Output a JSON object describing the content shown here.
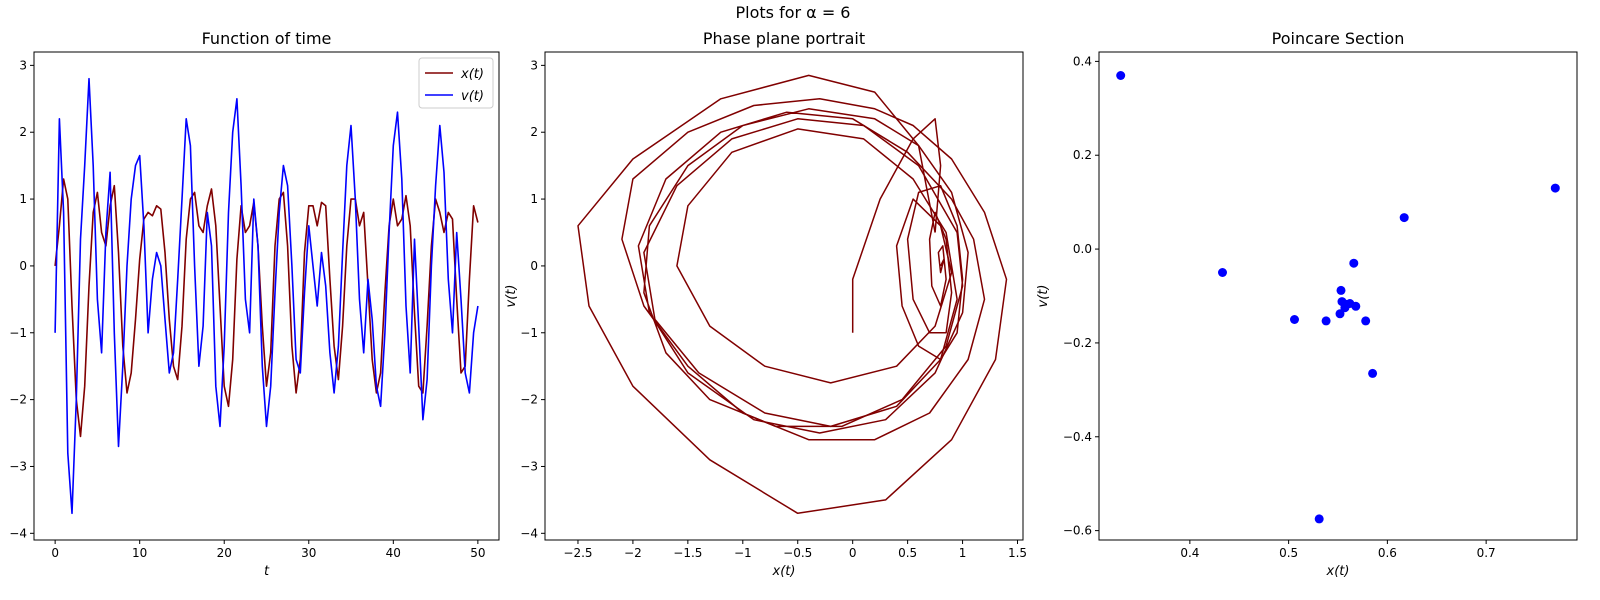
{
  "figure": {
    "suptitle": "Plots for α = 6"
  },
  "colors": {
    "x_series": "#800000",
    "v_series": "#0000ff",
    "poincare_points": "#0000ff",
    "axes": "#000000",
    "background": "#ffffff"
  },
  "chart_data": [
    {
      "type": "line",
      "title": "Function of time",
      "xlabel": "t",
      "ylabel": "",
      "xlim": [
        -2.5,
        52.5
      ],
      "ylim": [
        -4.1,
        3.2
      ],
      "xticks": [
        0,
        10,
        20,
        30,
        40,
        50
      ],
      "yticks": [
        -4,
        -3,
        -2,
        -1,
        0,
        1,
        2,
        3
      ],
      "grid": false,
      "legend": "top-right",
      "series": [
        {
          "name": "x(t)",
          "color": "#800000",
          "x": [
            0,
            0.5,
            1.0,
            1.5,
            2.0,
            2.5,
            3.0,
            3.5,
            4.0,
            4.5,
            5.0,
            5.5,
            6.0,
            6.5,
            7.0,
            7.5,
            8.0,
            8.5,
            9.0,
            9.5,
            10.0,
            10.5,
            11.0,
            11.5,
            12.0,
            12.5,
            13.0,
            13.5,
            14.0,
            14.5,
            15.0,
            15.5,
            16.0,
            16.5,
            17.0,
            17.5,
            18.0,
            18.5,
            19.0,
            19.5,
            20.0,
            20.5,
            21.0,
            21.5,
            22.0,
            22.5,
            23.0,
            23.5,
            24.0,
            24.5,
            25.0,
            25.5,
            26.0,
            26.5,
            27.0,
            27.5,
            28.0,
            28.5,
            29.0,
            29.5,
            30.0,
            30.5,
            31.0,
            31.5,
            32.0,
            32.5,
            33.0,
            33.5,
            34.0,
            34.5,
            35.0,
            35.5,
            36.0,
            36.5,
            37.0,
            37.5,
            38.0,
            38.5,
            39.0,
            39.5,
            40.0,
            40.5,
            41.0,
            41.5,
            42.0,
            42.5,
            43.0,
            43.5,
            44.0,
            44.5,
            45.0,
            45.5,
            46.0,
            46.5,
            47.0,
            47.5,
            48.0,
            48.5,
            49.0,
            49.5,
            50.0
          ],
          "values": [
            0,
            0.6,
            1.3,
            1.0,
            -0.6,
            -2.0,
            -2.55,
            -1.8,
            -0.3,
            0.8,
            1.1,
            0.5,
            0.3,
            0.9,
            1.2,
            0.2,
            -1.2,
            -1.9,
            -1.6,
            -0.8,
            0.1,
            0.7,
            0.8,
            0.75,
            0.9,
            0.85,
            0.2,
            -0.8,
            -1.5,
            -1.7,
            -0.9,
            0.4,
            1.0,
            1.1,
            0.6,
            0.5,
            0.9,
            1.15,
            0.6,
            -0.6,
            -1.8,
            -2.1,
            -1.4,
            0.1,
            0.9,
            0.5,
            0.6,
            0.95,
            0.3,
            -0.9,
            -1.8,
            -1.3,
            0.3,
            1.0,
            1.1,
            0.3,
            -1.2,
            -1.9,
            -1.4,
            0.2,
            0.9,
            0.9,
            0.6,
            0.95,
            0.9,
            -0.2,
            -1.2,
            -1.7,
            -0.9,
            0.3,
            1.0,
            1.0,
            0.6,
            0.8,
            -0.3,
            -1.4,
            -1.9,
            -1.6,
            -0.4,
            0.6,
            1.0,
            0.6,
            0.7,
            1.05,
            0.6,
            -0.7,
            -1.8,
            -1.9,
            -0.9,
            0.3,
            1.0,
            0.8,
            0.5,
            0.8,
            0.7,
            -0.5,
            -1.6,
            -1.5,
            -0.2,
            0.9,
            0.65
          ]
        },
        {
          "name": "v(t)",
          "color": "#0000ff",
          "x": [
            0,
            0.5,
            1.0,
            1.5,
            2.0,
            2.5,
            3.0,
            3.5,
            4.0,
            4.5,
            5.0,
            5.5,
            6.0,
            6.5,
            7.0,
            7.5,
            8.0,
            8.5,
            9.0,
            9.5,
            10.0,
            10.5,
            11.0,
            11.5,
            12.0,
            12.5,
            13.0,
            13.5,
            14.0,
            14.5,
            15.0,
            15.5,
            16.0,
            16.5,
            17.0,
            17.5,
            18.0,
            18.5,
            19.0,
            19.5,
            20.0,
            20.5,
            21.0,
            21.5,
            22.0,
            22.5,
            23.0,
            23.5,
            24.0,
            24.5,
            25.0,
            25.5,
            26.0,
            26.5,
            27.0,
            27.5,
            28.0,
            28.5,
            29.0,
            29.5,
            30.0,
            30.5,
            31.0,
            31.5,
            32.0,
            32.5,
            33.0,
            33.5,
            34.0,
            34.5,
            35.0,
            35.5,
            36.0,
            36.5,
            37.0,
            37.5,
            38.0,
            38.5,
            39.0,
            39.5,
            40.0,
            40.5,
            41.0,
            41.5,
            42.0,
            42.5,
            43.0,
            43.5,
            44.0,
            44.5,
            45.0,
            45.5,
            46.0,
            46.5,
            47.0,
            47.5,
            48.0,
            48.5,
            49.0,
            49.5,
            50.0
          ],
          "values": [
            -1.0,
            2.2,
            0.8,
            -2.8,
            -3.7,
            -2.0,
            0.4,
            1.5,
            2.8,
            1.5,
            -0.5,
            -1.3,
            0.5,
            1.4,
            -1.0,
            -2.7,
            -1.5,
            0.0,
            1.0,
            1.5,
            1.65,
            0.6,
            -1.0,
            -0.2,
            0.2,
            0.0,
            -0.8,
            -1.6,
            -1.3,
            -0.2,
            1.0,
            2.2,
            1.8,
            0.0,
            -1.5,
            -0.9,
            0.8,
            0.3,
            -1.8,
            -2.4,
            -1.2,
            0.8,
            2.0,
            2.5,
            1.2,
            -0.5,
            -1.0,
            1.0,
            0.3,
            -1.5,
            -2.4,
            -1.8,
            -0.4,
            0.8,
            1.5,
            1.2,
            0.0,
            -1.4,
            -1.6,
            -0.4,
            0.6,
            0.0,
            -0.6,
            0.2,
            -0.3,
            -1.3,
            -1.9,
            -1.2,
            0.2,
            1.5,
            2.1,
            1.0,
            -0.5,
            -1.3,
            -0.2,
            -0.8,
            -1.8,
            -2.1,
            -1.0,
            0.5,
            1.8,
            2.3,
            1.3,
            -0.6,
            -1.6,
            0.4,
            -0.9,
            -2.3,
            -1.7,
            0.0,
            1.2,
            2.1,
            1.4,
            -0.2,
            -1.0,
            0.5,
            -0.5,
            -1.6,
            -1.9,
            -1.0,
            -0.6
          ]
        }
      ]
    },
    {
      "type": "line",
      "title": "Phase plane portrait",
      "xlabel": "x(t)",
      "ylabel": "v(t)",
      "xlim": [
        -2.8,
        1.55
      ],
      "ylim": [
        -4.1,
        3.2
      ],
      "xticks": [
        -2.5,
        -2.0,
        -1.5,
        -1.0,
        -0.5,
        0.0,
        0.5,
        1.0,
        1.5
      ],
      "yticks": [
        -4,
        -3,
        -2,
        -1,
        0,
        1,
        2,
        3
      ],
      "grid": false,
      "color": "#800000",
      "curves": [
        {
          "x": [
            0.0,
            0.0,
            0.25,
            0.55,
            0.75,
            0.8,
            0.75
          ],
          "y": [
            -1.0,
            -0.2,
            1.0,
            1.9,
            2.2,
            1.5,
            0.5
          ]
        },
        {
          "x": [
            0.75,
            0.6,
            0.2,
            -0.4,
            -1.2,
            -2.0,
            -2.5,
            -2.4,
            -2.0,
            -1.3,
            -0.5,
            0.3,
            0.9,
            1.3,
            1.4,
            1.2,
            0.9,
            0.55,
            0.2,
            -0.3,
            -0.9,
            -1.5,
            -2.0,
            -2.1,
            -1.9,
            -1.5,
            -1.0,
            -0.4,
            0.2,
            0.7,
            1.05,
            1.2,
            1.1,
            0.9
          ],
          "y": [
            0.5,
            1.8,
            2.6,
            2.85,
            2.5,
            1.6,
            0.6,
            -0.6,
            -1.8,
            -2.9,
            -3.7,
            -3.5,
            -2.6,
            -1.4,
            -0.2,
            0.8,
            1.6,
            2.1,
            2.35,
            2.5,
            2.4,
            2.0,
            1.3,
            0.4,
            -0.6,
            -1.5,
            -2.2,
            -2.6,
            -2.6,
            -2.2,
            -1.4,
            -0.5,
            0.4,
            1.0
          ]
        },
        {
          "x": [
            0.9,
            0.5,
            0.0,
            -0.6,
            -1.2,
            -1.7,
            -1.95,
            -1.85,
            -1.5,
            -0.9,
            -0.3,
            0.3,
            0.75,
            1.0,
            1.05,
            0.9,
            0.6,
            0.2,
            -0.4,
            -1.0,
            -1.5,
            -1.85,
            -1.9,
            -1.7,
            -1.3,
            -0.7,
            -0.1,
            0.45,
            0.85,
            1.0,
            0.95
          ],
          "y": [
            1.0,
            1.7,
            2.2,
            2.3,
            2.0,
            1.3,
            0.3,
            -0.7,
            -1.6,
            -2.3,
            -2.5,
            -2.3,
            -1.6,
            -0.7,
            0.2,
            1.1,
            1.8,
            2.2,
            2.35,
            2.1,
            1.5,
            0.6,
            -0.4,
            -1.3,
            -2.0,
            -2.4,
            -2.4,
            -2.0,
            -1.2,
            -0.3,
            0.5
          ]
        },
        {
          "x": [
            0.95,
            0.6,
            0.1,
            -0.5,
            -1.1,
            -1.6,
            -1.9,
            -1.8,
            -1.4,
            -0.8,
            -0.2,
            0.4,
            0.8,
            0.95,
            0.85,
            0.55,
            0.1,
            -0.5,
            -1.1,
            -1.5,
            -1.6,
            -1.3,
            -0.8,
            -0.2,
            0.4,
            0.75,
            0.9,
            0.8
          ],
          "y": [
            0.5,
            1.5,
            2.1,
            2.2,
            1.9,
            1.2,
            0.2,
            -0.8,
            -1.6,
            -2.2,
            -2.4,
            -2.1,
            -1.4,
            -0.5,
            0.5,
            1.3,
            1.9,
            2.05,
            1.7,
            0.9,
            0.0,
            -0.9,
            -1.5,
            -1.75,
            -1.5,
            -0.9,
            -0.1,
            0.6
          ]
        },
        {
          "x": [
            0.8,
            0.55,
            0.4,
            0.45,
            0.6,
            0.8,
            0.95,
            1.0,
            0.95,
            0.8,
            0.6,
            0.5,
            0.55,
            0.7,
            0.85,
            0.9,
            0.85,
            0.75,
            0.7,
            0.72,
            0.8,
            0.85,
            0.82,
            0.78,
            0.8,
            0.83,
            0.8
          ],
          "y": [
            0.6,
            1.0,
            0.3,
            -0.6,
            -1.2,
            -1.4,
            -1.0,
            -0.2,
            0.6,
            1.2,
            1.1,
            0.4,
            -0.5,
            -1.0,
            -1.0,
            -0.4,
            0.4,
            0.8,
            0.4,
            -0.3,
            -0.6,
            -0.2,
            0.3,
            0.2,
            -0.1,
            0.1,
            0.0
          ]
        }
      ]
    },
    {
      "type": "scatter",
      "title": "Poincare Section",
      "xlabel": "x(t)",
      "ylabel": "v(t)",
      "xlim": [
        0.308,
        0.792
      ],
      "ylim": [
        -0.62,
        0.42
      ],
      "xticks": [
        0.4,
        0.5,
        0.6,
        0.7
      ],
      "xtick_labels": [
        "0.4",
        "0.5",
        "0.6",
        "0.7"
      ],
      "yticks": [
        -0.6,
        -0.4,
        -0.2,
        0.0,
        0.2,
        0.4
      ],
      "ytick_labels": [
        "−0.6",
        "−0.4",
        "−0.2",
        "0.0",
        "0.2",
        "0.4"
      ],
      "grid": false,
      "color": "#0000ff",
      "points": [
        {
          "x": 0.33,
          "y": 0.37
        },
        {
          "x": 0.433,
          "y": -0.05
        },
        {
          "x": 0.506,
          "y": -0.15
        },
        {
          "x": 0.531,
          "y": -0.575
        },
        {
          "x": 0.538,
          "y": -0.153
        },
        {
          "x": 0.552,
          "y": -0.138
        },
        {
          "x": 0.553,
          "y": -0.088
        },
        {
          "x": 0.554,
          "y": -0.112
        },
        {
          "x": 0.557,
          "y": -0.125
        },
        {
          "x": 0.559,
          "y": -0.118
        },
        {
          "x": 0.562,
          "y": -0.116
        },
        {
          "x": 0.566,
          "y": -0.03
        },
        {
          "x": 0.568,
          "y": -0.122
        },
        {
          "x": 0.578,
          "y": -0.153
        },
        {
          "x": 0.585,
          "y": -0.265
        },
        {
          "x": 0.617,
          "y": 0.067
        },
        {
          "x": 0.77,
          "y": 0.13
        }
      ]
    }
  ]
}
